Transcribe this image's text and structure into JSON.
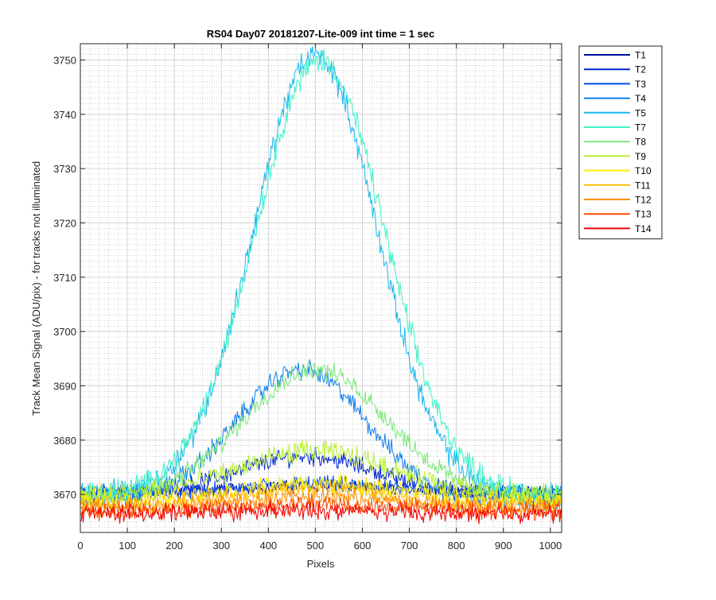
{
  "chart_data": {
    "type": "line",
    "title": "RS04 Day07 20181207-Lite-009 int time = 1 sec",
    "xlabel": "Pixels",
    "ylabel": "Track Mean Signal (ADU/pix) - for tracks not illuminated",
    "xlim": [
      0,
      1024
    ],
    "ylim": [
      3663,
      3753
    ],
    "xticks": [
      0,
      100,
      200,
      300,
      400,
      500,
      600,
      700,
      800,
      900,
      1000
    ],
    "yticks": [
      3670,
      3680,
      3690,
      3700,
      3710,
      3720,
      3730,
      3740,
      3750
    ],
    "grid": true,
    "minor_grid": true,
    "legend_placement": "outside-right",
    "series": [
      {
        "name": "T1",
        "color": "#000f9f",
        "base": 3670.5,
        "amp": 1.0,
        "center": 500,
        "width": 230,
        "noise": 0.8
      },
      {
        "name": "T2",
        "color": "#0024d4",
        "base": 3670.0,
        "amp": 7.0,
        "center": 480,
        "width": 210,
        "noise": 1.2
      },
      {
        "name": "T3",
        "color": "#0049ef",
        "base": 3670.0,
        "amp": 2.0,
        "center": 500,
        "width": 220,
        "noise": 1.0
      },
      {
        "name": "T4",
        "color": "#0f7fef",
        "base": 3669.0,
        "amp": 24.0,
        "center": 470,
        "width": 195,
        "noise": 1.3
      },
      {
        "name": "T5",
        "color": "#1ab8ef",
        "base": 3670.0,
        "amp": 81.0,
        "center": 500,
        "width": 185,
        "noise": 1.6
      },
      {
        "name": "T7",
        "color": "#3ef2c8",
        "base": 3670.0,
        "amp": 80.0,
        "center": 510,
        "width": 195,
        "noise": 1.6
      },
      {
        "name": "T8",
        "color": "#7ce87a",
        "base": 3669.0,
        "amp": 24.0,
        "center": 500,
        "width": 220,
        "noise": 1.3
      },
      {
        "name": "T9",
        "color": "#b8f030",
        "base": 3670.0,
        "amp": 8.0,
        "center": 500,
        "width": 230,
        "noise": 1.4
      },
      {
        "name": "T10",
        "color": "#ffee00",
        "base": 3669.0,
        "amp": 3.0,
        "center": 500,
        "width": 240,
        "noise": 1.2
      },
      {
        "name": "T11",
        "color": "#ffbf00",
        "base": 3668.0,
        "amp": 3.0,
        "center": 500,
        "width": 240,
        "noise": 1.2
      },
      {
        "name": "T12",
        "color": "#ff8c00",
        "base": 3667.5,
        "amp": 2.0,
        "center": 500,
        "width": 240,
        "noise": 1.2
      },
      {
        "name": "T13",
        "color": "#ff4b00",
        "base": 3667.0,
        "amp": 1.0,
        "center": 500,
        "width": 240,
        "noise": 1.2
      },
      {
        "name": "T14",
        "color": "#f20000",
        "base": 3666.5,
        "amp": 0.5,
        "center": 500,
        "width": 240,
        "noise": 1.2
      }
    ]
  }
}
